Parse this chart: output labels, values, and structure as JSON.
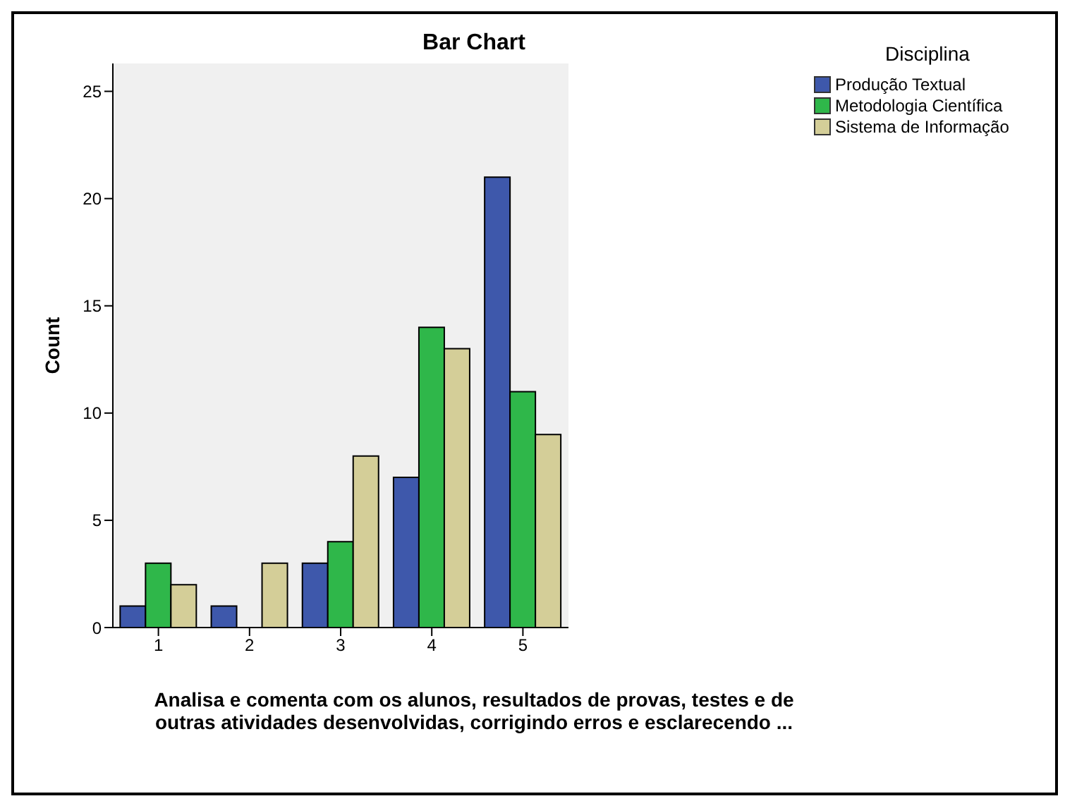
{
  "chart_data": {
    "type": "bar",
    "title": "Bar Chart",
    "xlabel": "Analisa e comenta com os alunos, resultados de provas, testes e de outras atividades desenvolvidas, corrigindo erros e esclarecendo ...",
    "ylabel": "Count",
    "legend_title": "Disciplina",
    "categories": [
      "1",
      "2",
      "3",
      "4",
      "5"
    ],
    "series": [
      {
        "name": "Produção Textual",
        "color": "#3e58ab",
        "values": [
          1,
          1,
          3,
          7,
          21
        ]
      },
      {
        "name": "Metodologia Científica",
        "color": "#2fb74a",
        "values": [
          3,
          0,
          4,
          14,
          11
        ]
      },
      {
        "name": "Sistema de Informação",
        "color": "#d4ce98",
        "values": [
          2,
          3,
          8,
          13,
          9
        ]
      }
    ],
    "ylim": [
      0,
      26.3
    ],
    "yticks": [
      0,
      5,
      10,
      15,
      20,
      25
    ],
    "legend": "top right"
  }
}
